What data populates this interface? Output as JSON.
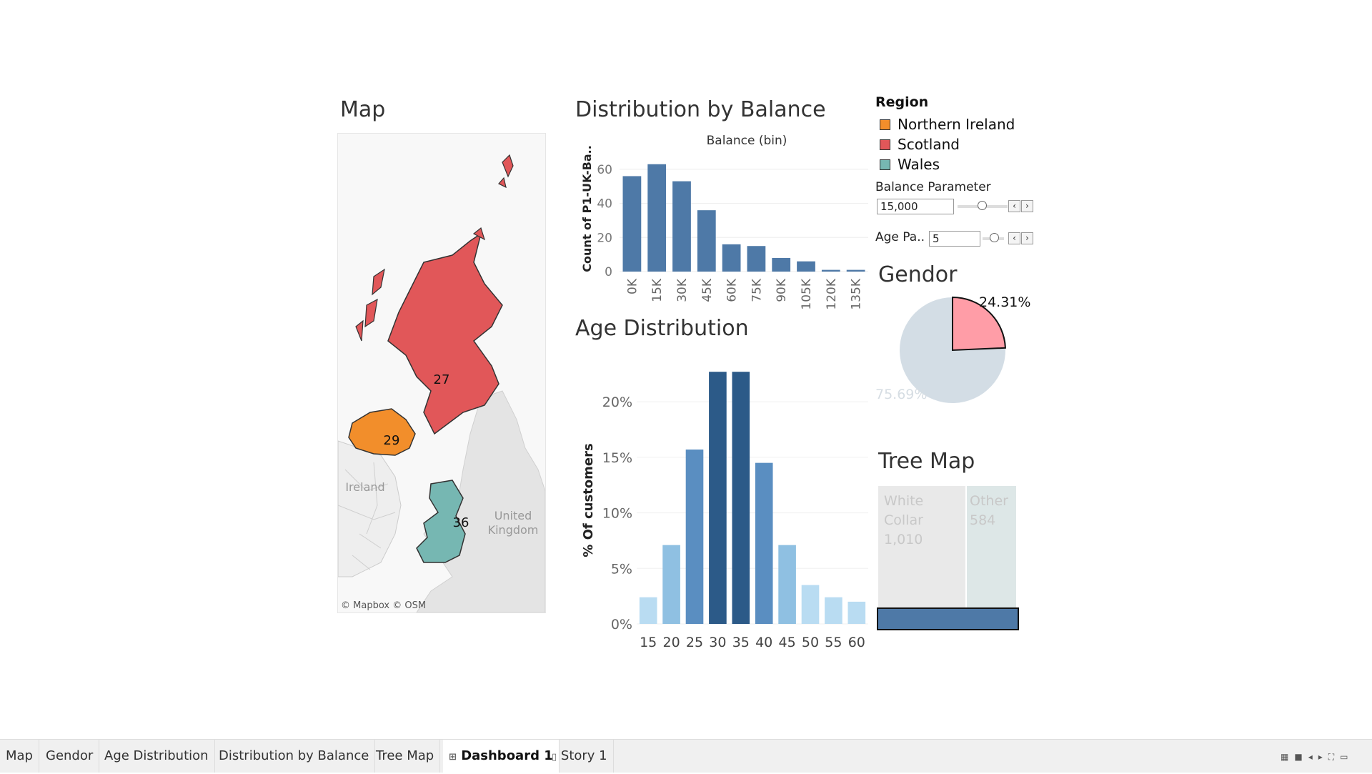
{
  "dashboard": {
    "map_title": "Map",
    "balance_title": "Distribution by Balance",
    "age_title": "Age Distribution",
    "gender_title": "Gendor",
    "treemap_title": "Tree Map"
  },
  "legend": {
    "title": "Region",
    "items": [
      {
        "label": "Northern Ireland",
        "color": "#f28e2b"
      },
      {
        "label": "Scotland",
        "color": "#e15759"
      },
      {
        "label": "Wales",
        "color": "#76b7b2"
      }
    ]
  },
  "parameters": {
    "balance_label": "Balance Parameter",
    "balance_value": "15,000",
    "age_label": "Age Pa..",
    "age_value": "5"
  },
  "map": {
    "labels": {
      "scotland": "27",
      "northern_ireland": "29",
      "wales": "36"
    },
    "place_ireland": "Ireland",
    "place_uk_line1": "United",
    "place_uk_line2": "Kingdom",
    "attribution": "© Mapbox © OSM",
    "colors": {
      "scotland": "#e15759",
      "northern_ireland": "#f28e2b",
      "wales": "#76b7b2"
    }
  },
  "gender": {
    "slices": [
      {
        "label": "24.31%",
        "value": 24.31,
        "color": "#ff9da7"
      },
      {
        "label": "75.69%",
        "value": 75.69,
        "color": "#d3dde5"
      }
    ]
  },
  "treemap": {
    "cells": [
      {
        "label": "White Collar",
        "value": "1,010",
        "color": "#e9e9e9"
      },
      {
        "label": "Other",
        "value": "584",
        "color": "#dde7e7"
      }
    ],
    "selected_color": "#4e79a7"
  },
  "chart_data": [
    {
      "type": "bar",
      "title": "",
      "xlabel": "Balance (bin)",
      "ylabel": "Count of P1-UK-Ba..",
      "categories": [
        "0K",
        "15K",
        "30K",
        "45K",
        "60K",
        "75K",
        "90K",
        "105K",
        "120K",
        "135K"
      ],
      "values": [
        56,
        63,
        53,
        36,
        16,
        15,
        8,
        6,
        1,
        1
      ],
      "ylim": [
        0,
        65
      ],
      "yticks": [
        "0",
        "20",
        "40",
        "60"
      ],
      "color": "#4e79a7",
      "grid": true
    },
    {
      "type": "bar",
      "title": "",
      "xlabel": "",
      "ylabel": "% Of customers",
      "categories": [
        "15",
        "20",
        "25",
        "30",
        "35",
        "40",
        "45",
        "50",
        "55",
        "60"
      ],
      "values": [
        2.4,
        7.1,
        15.7,
        22.7,
        22.7,
        14.5,
        7.1,
        3.5,
        2.4,
        2.0
      ],
      "colors": [
        "#b9dcf2",
        "#8fc0e2",
        "#5a8ec1",
        "#2c5a88",
        "#2c5a88",
        "#5a8ec1",
        "#8fc0e2",
        "#b9dcf2",
        "#b9dcf2",
        "#b9dcf2"
      ],
      "ylim": [
        0,
        24
      ],
      "yticks": [
        "0%",
        "5%",
        "10%",
        "15%",
        "20%"
      ],
      "grid": true
    }
  ],
  "tabs": [
    {
      "label": "Map"
    },
    {
      "label": "Gendor"
    },
    {
      "label": "Age Distribution"
    },
    {
      "label": "Distribution by Balance"
    },
    {
      "label": "Tree Map"
    },
    {
      "label": "Dashboard 1",
      "icon": "dashboard-icon"
    },
    {
      "label": "Story 1",
      "icon": "story-icon"
    }
  ]
}
